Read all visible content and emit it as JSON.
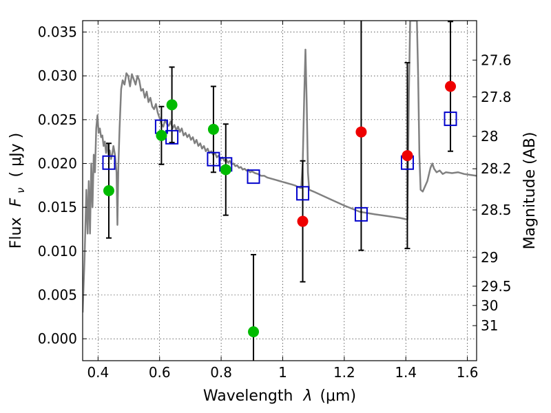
{
  "chart_data": {
    "type": "scatter",
    "xlabel": "Wavelength",
    "xlabel_symbol": "λ",
    "xlabel_unit": "(μm)",
    "ylabel": "Flux",
    "ylabel_symbol": "F",
    "ylabel_subscript": "ν",
    "ylabel_unit": "( μJy )",
    "y2label": "Magnitude (AB)",
    "xlim": [
      0.35,
      1.63
    ],
    "ylim": [
      -0.0025,
      0.0363
    ],
    "grid": true,
    "colors": {
      "model": "#808080",
      "green": "#00bb00",
      "red": "#ee0000",
      "boxes": "#0000cc"
    },
    "x_ticks": [
      {
        "value": 0.4,
        "label": "0.4"
      },
      {
        "value": 0.6,
        "label": "0.6"
      },
      {
        "value": 0.8,
        "label": "0.8"
      },
      {
        "value": 1.0,
        "label": "1"
      },
      {
        "value": 1.2,
        "label": "1.2"
      },
      {
        "value": 1.4,
        "label": "1.4"
      },
      {
        "value": 1.6,
        "label": "1.6"
      }
    ],
    "y_ticks": [
      {
        "value": 0.0,
        "label": "0.000"
      },
      {
        "value": 0.005,
        "label": "0.005"
      },
      {
        "value": 0.01,
        "label": "0.010"
      },
      {
        "value": 0.015,
        "label": "0.015"
      },
      {
        "value": 0.02,
        "label": "0.020"
      },
      {
        "value": 0.025,
        "label": "0.025"
      },
      {
        "value": 0.03,
        "label": "0.030"
      },
      {
        "value": 0.035,
        "label": "0.035"
      }
    ],
    "mag_ticks": [
      {
        "flux": 0.0318,
        "label": "27.6"
      },
      {
        "flux": 0.0276,
        "label": "27.8"
      },
      {
        "flux": 0.0231,
        "label": "28"
      },
      {
        "flux": 0.0194,
        "label": "28.2"
      },
      {
        "flux": 0.0147,
        "label": "28.5"
      },
      {
        "flux": 0.0093,
        "label": "29"
      },
      {
        "flux": 0.006,
        "label": "29.5"
      },
      {
        "flux": 0.0038,
        "label": "30"
      },
      {
        "flux": 0.0015,
        "label": "31"
      }
    ],
    "green_points": [
      {
        "x": 0.435,
        "y": 0.0169,
        "err": 0.0054
      },
      {
        "x": 0.606,
        "y": 0.0232,
        "err": 0.0033
      },
      {
        "x": 0.64,
        "y": 0.0267,
        "err": 0.0043
      },
      {
        "x": 0.775,
        "y": 0.0239,
        "err": 0.0049
      },
      {
        "x": 0.815,
        "y": 0.0193,
        "err": 0.0052
      },
      {
        "x": 0.905,
        "y": 0.0008,
        "err": 0.0088
      }
    ],
    "red_points": [
      {
        "x": 1.065,
        "y": 0.0134,
        "err": 0.0069
      },
      {
        "x": 1.255,
        "y": 0.0236,
        "err": 0.0135
      },
      {
        "x": 1.405,
        "y": 0.0209,
        "err": 0.0106
      },
      {
        "x": 1.545,
        "y": 0.0288,
        "err": 0.0074
      }
    ],
    "model_boxes": [
      {
        "x": 0.435,
        "y": 0.0201
      },
      {
        "x": 0.606,
        "y": 0.0242
      },
      {
        "x": 0.64,
        "y": 0.023
      },
      {
        "x": 0.775,
        "y": 0.0205
      },
      {
        "x": 0.815,
        "y": 0.0199
      },
      {
        "x": 0.905,
        "y": 0.0185
      },
      {
        "x": 1.065,
        "y": 0.0166
      },
      {
        "x": 1.255,
        "y": 0.0142
      },
      {
        "x": 1.405,
        "y": 0.0201
      },
      {
        "x": 1.545,
        "y": 0.0251
      }
    ],
    "model_spectrum": [
      [
        0.35,
        0.003
      ],
      [
        0.356,
        0.009
      ],
      [
        0.362,
        0.017
      ],
      [
        0.366,
        0.012
      ],
      [
        0.37,
        0.018
      ],
      [
        0.374,
        0.012
      ],
      [
        0.378,
        0.02
      ],
      [
        0.382,
        0.015
      ],
      [
        0.386,
        0.021
      ],
      [
        0.39,
        0.019
      ],
      [
        0.394,
        0.024
      ],
      [
        0.398,
        0.0255
      ],
      [
        0.402,
        0.0235
      ],
      [
        0.406,
        0.024
      ],
      [
        0.41,
        0.023
      ],
      [
        0.414,
        0.0232
      ],
      [
        0.418,
        0.022
      ],
      [
        0.422,
        0.0225
      ],
      [
        0.426,
        0.0212
      ],
      [
        0.43,
        0.0223
      ],
      [
        0.434,
        0.021
      ],
      [
        0.438,
        0.0215
      ],
      [
        0.442,
        0.0205
      ],
      [
        0.446,
        0.021
      ],
      [
        0.45,
        0.022
      ],
      [
        0.455,
        0.021
      ],
      [
        0.46,
        0.019
      ],
      [
        0.463,
        0.013
      ],
      [
        0.466,
        0.0195
      ],
      [
        0.47,
        0.024
      ],
      [
        0.475,
        0.0285
      ],
      [
        0.48,
        0.0295
      ],
      [
        0.486,
        0.029
      ],
      [
        0.492,
        0.0303
      ],
      [
        0.498,
        0.03
      ],
      [
        0.504,
        0.0288
      ],
      [
        0.51,
        0.0302
      ],
      [
        0.516,
        0.0296
      ],
      [
        0.522,
        0.029
      ],
      [
        0.528,
        0.03
      ],
      [
        0.534,
        0.0295
      ],
      [
        0.54,
        0.0283
      ],
      [
        0.546,
        0.0285
      ],
      [
        0.552,
        0.0275
      ],
      [
        0.558,
        0.0282
      ],
      [
        0.564,
        0.027
      ],
      [
        0.57,
        0.0275
      ],
      [
        0.576,
        0.0265
      ],
      [
        0.582,
        0.0262
      ],
      [
        0.588,
        0.0268
      ],
      [
        0.594,
        0.0258
      ],
      [
        0.6,
        0.0252
      ],
      [
        0.606,
        0.0245
      ],
      [
        0.612,
        0.0242
      ],
      [
        0.618,
        0.025
      ],
      [
        0.624,
        0.0245
      ],
      [
        0.63,
        0.0243
      ],
      [
        0.636,
        0.0248
      ],
      [
        0.642,
        0.024
      ],
      [
        0.648,
        0.0244
      ],
      [
        0.654,
        0.0238
      ],
      [
        0.66,
        0.0242
      ],
      [
        0.666,
        0.0236
      ],
      [
        0.672,
        0.024
      ],
      [
        0.678,
        0.0232
      ],
      [
        0.684,
        0.0235
      ],
      [
        0.69,
        0.023
      ],
      [
        0.696,
        0.0233
      ],
      [
        0.702,
        0.0227
      ],
      [
        0.708,
        0.023
      ],
      [
        0.714,
        0.0223
      ],
      [
        0.72,
        0.0227
      ],
      [
        0.726,
        0.022
      ],
      [
        0.732,
        0.0223
      ],
      [
        0.738,
        0.0217
      ],
      [
        0.744,
        0.022
      ],
      [
        0.75,
        0.0214
      ],
      [
        0.756,
        0.0217
      ],
      [
        0.762,
        0.0212
      ],
      [
        0.768,
        0.0214
      ],
      [
        0.774,
        0.021
      ],
      [
        0.78,
        0.0212
      ],
      [
        0.786,
        0.0207
      ],
      [
        0.792,
        0.0209
      ],
      [
        0.798,
        0.0205
      ],
      [
        0.804,
        0.0207
      ],
      [
        0.81,
        0.0203
      ],
      [
        0.816,
        0.0205
      ],
      [
        0.822,
        0.0201
      ],
      [
        0.828,
        0.0203
      ],
      [
        0.834,
        0.0199
      ],
      [
        0.84,
        0.02
      ],
      [
        0.846,
        0.0197
      ],
      [
        0.852,
        0.0198
      ],
      [
        0.858,
        0.0195
      ],
      [
        0.864,
        0.0196
      ],
      [
        0.87,
        0.0193
      ],
      [
        0.876,
        0.0194
      ],
      [
        0.882,
        0.0192
      ],
      [
        0.888,
        0.0193
      ],
      [
        0.894,
        0.019
      ],
      [
        0.9,
        0.0191
      ],
      [
        0.91,
        0.0189
      ],
      [
        0.92,
        0.0188
      ],
      [
        0.93,
        0.0186
      ],
      [
        0.94,
        0.0186
      ],
      [
        0.95,
        0.0184
      ],
      [
        0.96,
        0.0183
      ],
      [
        0.97,
        0.0182
      ],
      [
        0.98,
        0.0181
      ],
      [
        0.99,
        0.018
      ],
      [
        1.0,
        0.0179
      ],
      [
        1.01,
        0.0178
      ],
      [
        1.02,
        0.0177
      ],
      [
        1.03,
        0.0176
      ],
      [
        1.04,
        0.0175
      ],
      [
        1.05,
        0.0173
      ],
      [
        1.06,
        0.0172
      ],
      [
        1.065,
        0.02
      ],
      [
        1.07,
        0.028
      ],
      [
        1.074,
        0.033
      ],
      [
        1.078,
        0.027
      ],
      [
        1.082,
        0.019
      ],
      [
        1.086,
        0.017
      ],
      [
        1.1,
        0.0168
      ],
      [
        1.15,
        0.016
      ],
      [
        1.2,
        0.0152
      ],
      [
        1.25,
        0.0145
      ],
      [
        1.3,
        0.0142
      ],
      [
        1.34,
        0.014
      ],
      [
        1.38,
        0.0138
      ],
      [
        1.405,
        0.0136
      ],
      [
        1.41,
        0.028
      ],
      [
        1.414,
        0.0363
      ],
      [
        1.436,
        0.0363
      ],
      [
        1.44,
        0.03
      ],
      [
        1.444,
        0.021
      ],
      [
        1.448,
        0.017
      ],
      [
        1.455,
        0.0168
      ],
      [
        1.47,
        0.018
      ],
      [
        1.48,
        0.0195
      ],
      [
        1.486,
        0.02
      ],
      [
        1.492,
        0.0194
      ],
      [
        1.5,
        0.019
      ],
      [
        1.51,
        0.0192
      ],
      [
        1.52,
        0.0188
      ],
      [
        1.53,
        0.019
      ],
      [
        1.55,
        0.0189
      ],
      [
        1.57,
        0.019
      ],
      [
        1.59,
        0.0188
      ],
      [
        1.61,
        0.0187
      ],
      [
        1.63,
        0.0186
      ]
    ]
  }
}
